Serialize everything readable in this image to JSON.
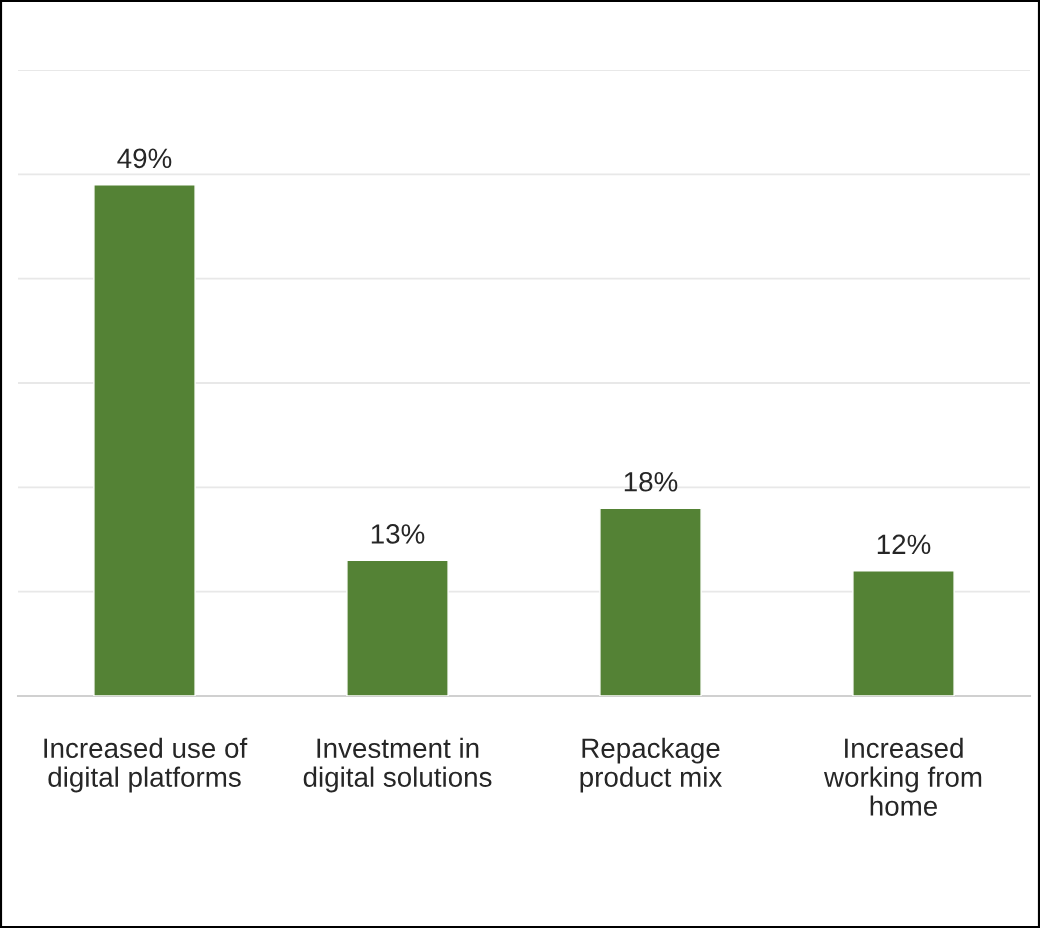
{
  "chart_data": {
    "type": "bar",
    "categories": [
      "Increased use of\ndigital platforms",
      "Investment in\ndigital solutions",
      "Repackage\nproduct mix",
      "Increased\nworking from\nhome"
    ],
    "values": [
      49,
      13,
      18,
      12
    ],
    "value_labels": [
      "49%",
      "13%",
      "18%",
      "12%"
    ],
    "color": "#548235",
    "ylim": [
      0,
      60
    ],
    "yticks": [
      {
        "value": 0,
        "label": null
      },
      {
        "value": 10,
        "label": null
      },
      {
        "value": 20,
        "label": null
      },
      {
        "value": 30,
        "label": null
      },
      {
        "value": 40,
        "label": null
      },
      {
        "value": 50,
        "label": null
      },
      {
        "value": 60,
        "label": null
      }
    ],
    "tick_labels": "x",
    "grid": "y",
    "legend": false
  }
}
